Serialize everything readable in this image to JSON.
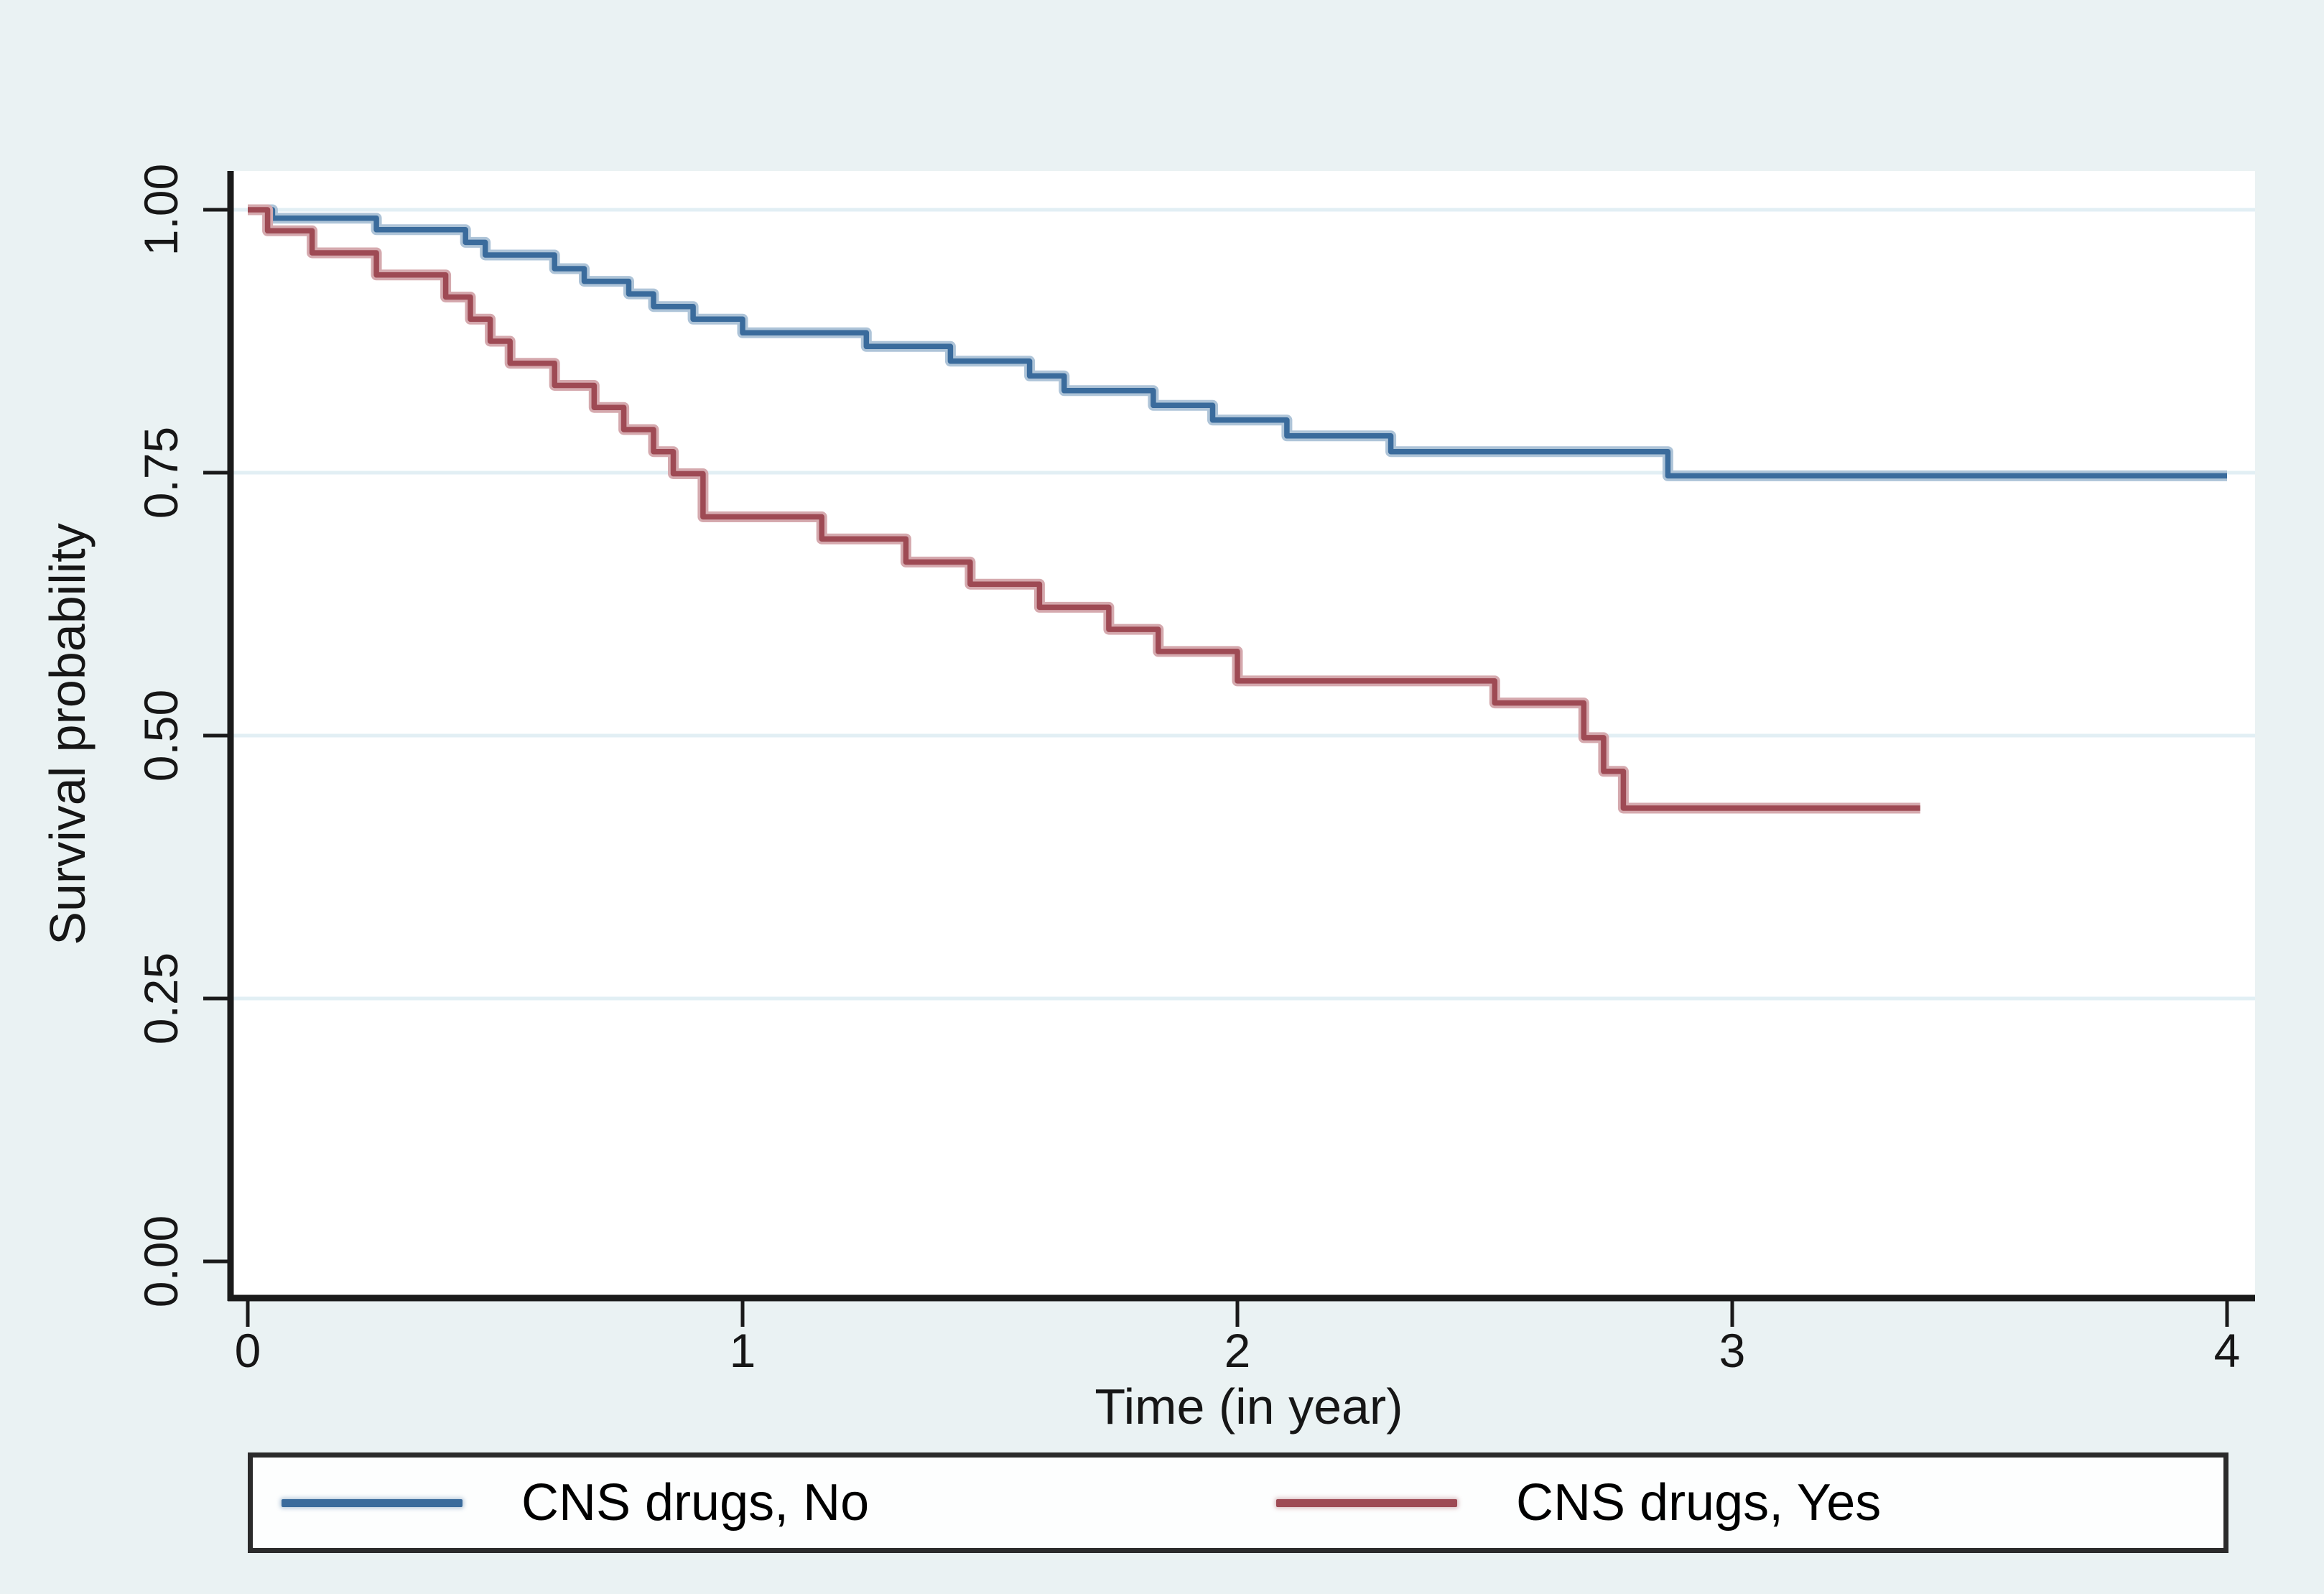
{
  "figure": {
    "background_color": "#eaf2f3",
    "plot_background_color": "#ffffff",
    "gridline_color": "#e2eff4",
    "axis_color": "#1a1a1a"
  },
  "axes": {
    "y_title": "Survival probability",
    "x_title": "Time (in year)",
    "y_tick_labels": [
      "1.00",
      "0.75",
      "0.50",
      "0.25",
      "0.00"
    ],
    "x_tick_labels": [
      "0",
      "1",
      "2",
      "3",
      "4"
    ]
  },
  "legend": {
    "items": [
      {
        "label": "CNS drugs, No",
        "color": "#3a6b9c"
      },
      {
        "label": "CNS drugs, Yes",
        "color": "#9e4a54"
      }
    ]
  },
  "chart_data": {
    "type": "line",
    "subtype": "kaplan-meier-step",
    "title": "",
    "xlabel": "Time (in year)",
    "ylabel": "Survival probability",
    "xlim": [
      0,
      4.15
    ],
    "ylim": [
      0.0,
      1.0
    ],
    "x_ticks": [
      0,
      1,
      2,
      3,
      4
    ],
    "y_ticks": [
      1.0,
      0.75,
      0.5,
      0.25,
      0.0
    ],
    "grid": "horizontal-only",
    "legend_position": "bottom",
    "series": [
      {
        "name": "CNS drugs, No",
        "color": "#3a6b9c",
        "halo_color": "#aec4d8",
        "end_time": 4.0,
        "steps": [
          [
            0.0,
            1.0
          ],
          [
            0.05,
            0.992
          ],
          [
            0.26,
            0.981
          ],
          [
            0.44,
            0.969
          ],
          [
            0.48,
            0.957
          ],
          [
            0.62,
            0.944
          ],
          [
            0.68,
            0.932
          ],
          [
            0.77,
            0.92
          ],
          [
            0.82,
            0.908
          ],
          [
            0.9,
            0.896
          ],
          [
            1.0,
            0.883
          ],
          [
            1.25,
            0.87
          ],
          [
            1.42,
            0.856
          ],
          [
            1.58,
            0.842
          ],
          [
            1.65,
            0.828
          ],
          [
            1.83,
            0.814
          ],
          [
            1.95,
            0.8
          ],
          [
            2.1,
            0.785
          ],
          [
            2.31,
            0.77
          ],
          [
            2.87,
            0.747
          ]
        ]
      },
      {
        "name": "CNS drugs, Yes",
        "color": "#9e4a54",
        "halo_color": "#d5a9ae",
        "end_time": 3.38,
        "steps": [
          [
            0.0,
            1.0
          ],
          [
            0.04,
            0.98
          ],
          [
            0.13,
            0.959
          ],
          [
            0.26,
            0.938
          ],
          [
            0.4,
            0.917
          ],
          [
            0.45,
            0.896
          ],
          [
            0.49,
            0.875
          ],
          [
            0.53,
            0.854
          ],
          [
            0.62,
            0.833
          ],
          [
            0.7,
            0.812
          ],
          [
            0.76,
            0.791
          ],
          [
            0.82,
            0.77
          ],
          [
            0.86,
            0.749
          ],
          [
            0.92,
            0.708
          ],
          [
            1.16,
            0.687
          ],
          [
            1.33,
            0.665
          ],
          [
            1.46,
            0.644
          ],
          [
            1.6,
            0.622
          ],
          [
            1.74,
            0.601
          ],
          [
            1.84,
            0.58
          ],
          [
            2.0,
            0.552
          ],
          [
            2.52,
            0.531
          ],
          [
            2.7,
            0.498
          ],
          [
            2.74,
            0.466
          ],
          [
            2.78,
            0.431
          ]
        ]
      }
    ]
  }
}
